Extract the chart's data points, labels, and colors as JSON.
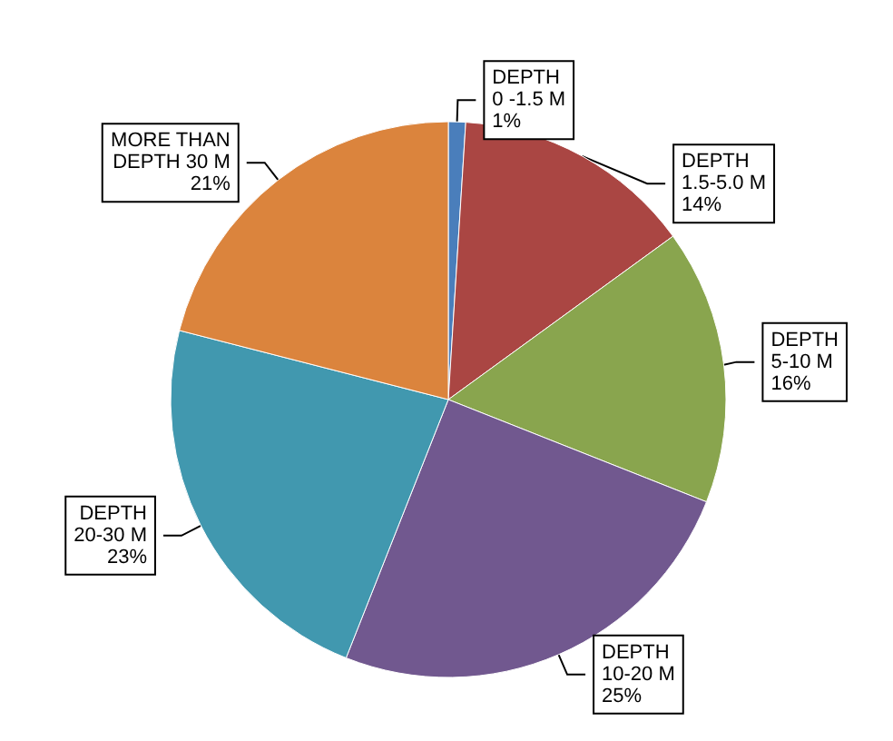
{
  "chart_data": {
    "type": "pie",
    "categories": [
      "DEPTH\n0 -1.5 M",
      "DEPTH\n1.5-5.0 M",
      "DEPTH\n5-10 M",
      "DEPTH\n10-20 M",
      "DEPTH\n20-30 M",
      "MORE THAN\nDEPTH 30 M"
    ],
    "values": [
      1,
      14,
      16,
      25,
      23,
      21
    ],
    "value_labels": [
      "1%",
      "14%",
      "16%",
      "25%",
      "23%",
      "21%"
    ],
    "colors": [
      "#4a7ebb",
      "#aa4643",
      "#89a54e",
      "#71588f",
      "#4198af",
      "#db843d"
    ],
    "legend": false
  }
}
